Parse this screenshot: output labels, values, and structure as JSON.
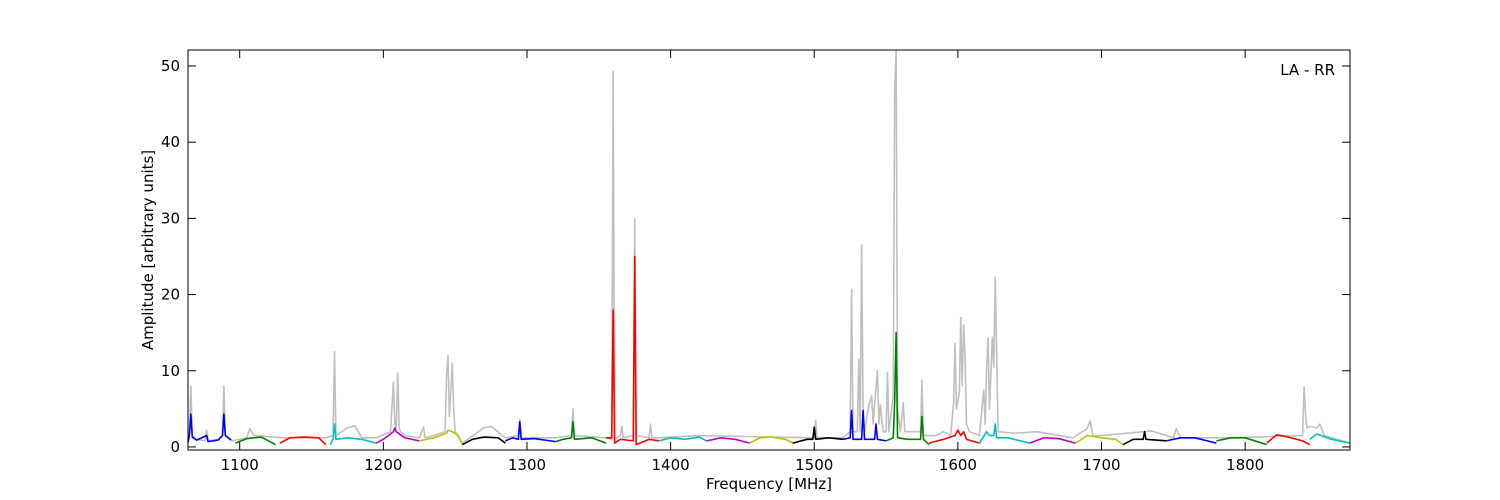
{
  "chart_data": {
    "type": "line",
    "xlabel": "Frequency [MHz]",
    "ylabel": "Amplitude [arbitrary units]",
    "annotation": "LA - RR",
    "xlim": [
      1064,
      1873
    ],
    "ylim": [
      -0.4,
      52.1
    ],
    "xticks": [
      1100,
      1200,
      1300,
      1400,
      1500,
      1600,
      1700,
      1800
    ],
    "yticks": [
      0,
      10,
      20,
      30,
      40,
      50
    ],
    "series": [
      {
        "color": "#bfbfbf",
        "x": [
          1064,
          1065,
          1066,
          1067,
          1070,
          1076,
          1077,
          1078,
          1085,
          1088,
          1089,
          1090,
          1095,
          1105,
          1107,
          1110,
          1130,
          1160,
          1165,
          1166,
          1167,
          1175,
          1180,
          1185,
          1195,
          1205,
          1207,
          1208,
          1209,
          1210,
          1211,
          1212,
          1215,
          1225,
          1228,
          1229,
          1235,
          1243,
          1244,
          1245,
          1246,
          1248,
          1249,
          1250,
          1255,
          1270,
          1275,
          1285,
          1294,
          1295,
          1296,
          1320,
          1331,
          1332,
          1333,
          1355,
          1359,
          1360,
          1361,
          1365,
          1366,
          1367,
          1374,
          1375,
          1376,
          1385,
          1386,
          1387,
          1392,
          1420,
          1470,
          1500,
          1501,
          1502,
          1520,
          1525,
          1526,
          1527,
          1530,
          1531,
          1532,
          1533,
          1534,
          1535,
          1538,
          1540,
          1541,
          1542,
          1544,
          1545,
          1546,
          1548,
          1550,
          1551,
          1552,
          1555,
          1556,
          1557,
          1558,
          1560,
          1562,
          1563,
          1565,
          1574,
          1575,
          1576,
          1585,
          1590,
          1595,
          1597,
          1598,
          1599,
          1601,
          1602,
          1603,
          1604,
          1605,
          1606,
          1608,
          1615,
          1618,
          1619,
          1620,
          1621,
          1622,
          1624,
          1625,
          1626,
          1628,
          1640,
          1655,
          1680,
          1690,
          1692,
          1694,
          1700,
          1735,
          1750,
          1752,
          1755,
          1790,
          1840,
          1841,
          1842,
          1843,
          1845,
          1850,
          1852,
          1855,
          1873
        ],
        "values": [
          0.8,
          2,
          8,
          1.5,
          1,
          0.8,
          2.2,
          0.8,
          1,
          1.5,
          8,
          1.5,
          0.8,
          1.2,
          2.4,
          1.5,
          1.2,
          1.2,
          1.5,
          12.5,
          1.5,
          2.5,
          2.8,
          1.2,
          1.2,
          2,
          8.5,
          3,
          2.5,
          9.7,
          2.5,
          2,
          1.5,
          1.2,
          2.6,
          1.2,
          1.5,
          2,
          9.2,
          12,
          4,
          11,
          5,
          2,
          0.5,
          2.5,
          2.7,
          1.2,
          1.5,
          3.6,
          1.2,
          1.2,
          1.5,
          5,
          1.5,
          1.2,
          1,
          49.3,
          1,
          1.5,
          2.7,
          1.2,
          1.5,
          30,
          1.5,
          1.2,
          3,
          1.2,
          1.2,
          1.5,
          1.3,
          1.2,
          3.5,
          1.2,
          1.2,
          2,
          20.7,
          2,
          2,
          11.5,
          2,
          26.5,
          5,
          2,
          5.5,
          6.7,
          3,
          5.5,
          10,
          3,
          5.5,
          2,
          2,
          9.8,
          2,
          6.8,
          47,
          52,
          5,
          2,
          5.8,
          2,
          2,
          2,
          8.8,
          1.5,
          1.5,
          2,
          1.5,
          5.8,
          13.6,
          5,
          7,
          17,
          8,
          16,
          12,
          3,
          2,
          1.5,
          7.5,
          3,
          10.2,
          14.3,
          5,
          14.4,
          10.5,
          22.3,
          2,
          1.8,
          2,
          1.2,
          2.4,
          3.4,
          1.5,
          1.5,
          2.1,
          1.2,
          2.4,
          1.2,
          1.2,
          1.5,
          7.9,
          4.5,
          2.5,
          2.7,
          2.5,
          3,
          1.5,
          0.5
        ]
      },
      {
        "color": "#0000ff",
        "x": [
          1064,
          1065,
          1066,
          1067,
          1070,
          1077,
          1078,
          1085,
          1088,
          1089,
          1090,
          1094
        ],
        "values": [
          0.6,
          1.5,
          4.3,
          1.3,
          0.9,
          1.5,
          0.7,
          0.9,
          1.5,
          4.3,
          1.5,
          0.9
        ]
      },
      {
        "color": "#008000",
        "x": [
          1097,
          1105,
          1115,
          1125
        ],
        "values": [
          0.5,
          1.1,
          1.3,
          0.3
        ]
      },
      {
        "color": "#ff0000",
        "x": [
          1128,
          1135,
          1145,
          1155,
          1160
        ],
        "values": [
          0.5,
          1.2,
          1.3,
          1.2,
          0.3
        ]
      },
      {
        "color": "#00bfbf",
        "x": [
          1163,
          1165,
          1166,
          1167,
          1175,
          1185,
          1195
        ],
        "values": [
          0.3,
          1,
          3,
          1,
          1.2,
          1,
          0.5
        ]
      },
      {
        "color": "#bf00bf",
        "x": [
          1195,
          1200,
          1207,
          1208,
          1209,
          1215,
          1225
        ],
        "values": [
          0.5,
          1,
          2,
          2.5,
          2,
          1.2,
          0.8
        ]
      },
      {
        "color": "#bfbf00",
        "x": [
          1225,
          1235,
          1244,
          1245,
          1248,
          1252,
          1255
        ],
        "values": [
          0.8,
          1.2,
          1.8,
          2.2,
          2,
          1.5,
          0.3
        ]
      },
      {
        "color": "#000000",
        "x": [
          1255,
          1262,
          1270,
          1280,
          1285
        ],
        "values": [
          0.3,
          1,
          1.3,
          1.2,
          0.5
        ]
      },
      {
        "color": "#0000ff",
        "x": [
          1285,
          1290,
          1294,
          1295,
          1296,
          1305,
          1320
        ],
        "values": [
          0.8,
          1.2,
          1,
          3.3,
          1,
          1.1,
          0.7
        ]
      },
      {
        "color": "#008000",
        "x": [
          1320,
          1325,
          1331,
          1332,
          1333,
          1345,
          1355
        ],
        "values": [
          0.7,
          1,
          1.2,
          3.3,
          1,
          1.2,
          0.5
        ]
      },
      {
        "color": "#ff0000",
        "x": [
          1355,
          1359,
          1360,
          1361,
          1365,
          1374,
          1375,
          1376,
          1385,
          1392
        ],
        "values": [
          1.2,
          1.2,
          18,
          0.5,
          1,
          0.8,
          25,
          0.3,
          1,
          0.8
        ]
      },
      {
        "color": "#00bfbf",
        "x": [
          1392,
          1400,
          1410,
          1420,
          1425
        ],
        "values": [
          0.8,
          1.2,
          1,
          1.3,
          0.8
        ]
      },
      {
        "color": "#bf00bf",
        "x": [
          1425,
          1435,
          1445,
          1455
        ],
        "values": [
          0.8,
          1.2,
          1,
          0.5
        ]
      },
      {
        "color": "#bfbf00",
        "x": [
          1455,
          1462,
          1470,
          1480,
          1485
        ],
        "values": [
          0.5,
          1.2,
          1.3,
          1,
          0.5
        ]
      },
      {
        "color": "#000000",
        "x": [
          1485,
          1495,
          1499,
          1500,
          1501,
          1510,
          1520
        ],
        "values": [
          0.5,
          1,
          1,
          2.6,
          1,
          1.2,
          1
        ]
      },
      {
        "color": "#0000ff",
        "x": [
          1520,
          1525,
          1526,
          1527,
          1533,
          1534,
          1535,
          1542,
          1543,
          1544,
          1550
        ],
        "values": [
          1,
          1.2,
          4.8,
          1,
          1,
          4.8,
          1,
          1,
          3,
          1,
          0.8
        ]
      },
      {
        "color": "#008000",
        "x": [
          1550,
          1555,
          1556,
          1557,
          1558,
          1565,
          1574,
          1575,
          1576,
          1580
        ],
        "values": [
          0.8,
          1.2,
          6,
          15,
          1.2,
          1,
          1,
          4,
          1,
          0.3
        ]
      },
      {
        "color": "#ff0000",
        "x": [
          1580,
          1590,
          1598,
          1600,
          1602,
          1604,
          1606,
          1615
        ],
        "values": [
          0.5,
          1,
          1.5,
          2.2,
          1.5,
          2,
          1,
          0.5
        ]
      },
      {
        "color": "#00bfbf",
        "x": [
          1615,
          1620,
          1622,
          1625,
          1626,
          1627,
          1635,
          1650
        ],
        "values": [
          0.5,
          2,
          1.5,
          1.5,
          3,
          1.2,
          1.2,
          0.5
        ]
      },
      {
        "color": "#bf00bf",
        "x": [
          1650,
          1660,
          1670,
          1682
        ],
        "values": [
          0.5,
          1.2,
          1.1,
          0.5
        ]
      },
      {
        "color": "#bfbf00",
        "x": [
          1682,
          1690,
          1700,
          1710,
          1715
        ],
        "values": [
          0.5,
          1.5,
          1.2,
          1,
          0.3
        ]
      },
      {
        "color": "#000000",
        "x": [
          1715,
          1722,
          1729,
          1730,
          1731,
          1745
        ],
        "values": [
          0.3,
          1,
          1,
          2,
          1,
          0.8
        ]
      },
      {
        "color": "#0000ff",
        "x": [
          1745,
          1755,
          1765,
          1780
        ],
        "values": [
          0.8,
          1.2,
          1.2,
          0.5
        ]
      },
      {
        "color": "#008000",
        "x": [
          1780,
          1790,
          1800,
          1815
        ],
        "values": [
          0.8,
          1.2,
          1.2,
          0.3
        ]
      },
      {
        "color": "#ff0000",
        "x": [
          1815,
          1822,
          1830,
          1840,
          1845
        ],
        "values": [
          0.5,
          1.6,
          1.3,
          0.8,
          0.3
        ]
      },
      {
        "color": "#00bfbf",
        "x": [
          1845,
          1850,
          1860,
          1873
        ],
        "values": [
          1,
          1.7,
          1,
          0.5
        ]
      }
    ]
  }
}
